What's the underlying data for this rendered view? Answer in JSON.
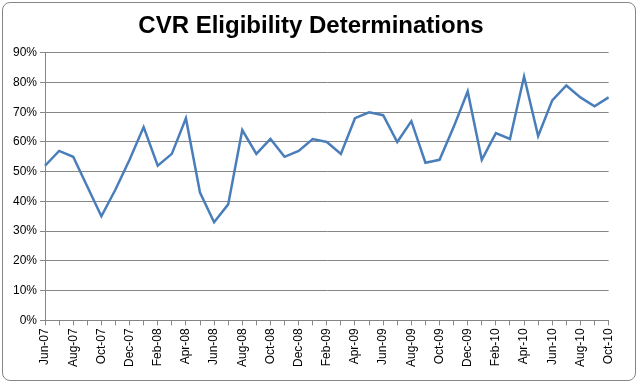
{
  "chart_data": {
    "type": "line",
    "title": "CVR Eligibility Determinations",
    "categories": [
      "Jun-07",
      null,
      "Aug-07",
      null,
      "Oct-07",
      null,
      "Dec-07",
      null,
      "Feb-08",
      null,
      "Apr-08",
      null,
      "Jun-08",
      null,
      "Aug-08",
      null,
      "Oct-08",
      null,
      "Dec-08",
      null,
      "Feb-09",
      null,
      "Apr-09",
      null,
      "Jun-09",
      null,
      "Aug-09",
      null,
      "Oct-09",
      null,
      "Dec-09",
      null,
      "Feb-10",
      null,
      "Apr-10",
      null,
      "Jun-10",
      null,
      "Aug-10",
      null,
      "Oct-10"
    ],
    "values": [
      52,
      57,
      55,
      45,
      35,
      44,
      54,
      65,
      52,
      56,
      68,
      43,
      33,
      39,
      64,
      56,
      61,
      55,
      57,
      61,
      60,
      56,
      68,
      70,
      69,
      60,
      67,
      53,
      54,
      65,
      77,
      54,
      63,
      61,
      82,
      62,
      74,
      79,
      75,
      72,
      75
    ],
    "color": "#4a7ebb",
    "ylim": [
      0,
      90
    ],
    "yticks": [
      {
        "value": 0,
        "label": "0%"
      },
      {
        "value": 10,
        "label": "10%"
      },
      {
        "value": 20,
        "label": "20%"
      },
      {
        "value": 30,
        "label": "30%"
      },
      {
        "value": 40,
        "label": "40%"
      },
      {
        "value": 50,
        "label": "50%"
      },
      {
        "value": 60,
        "label": "60%"
      },
      {
        "value": 70,
        "label": "70%"
      },
      {
        "value": 80,
        "label": "80%"
      },
      {
        "value": 90,
        "label": "90%"
      }
    ],
    "grid": true
  }
}
